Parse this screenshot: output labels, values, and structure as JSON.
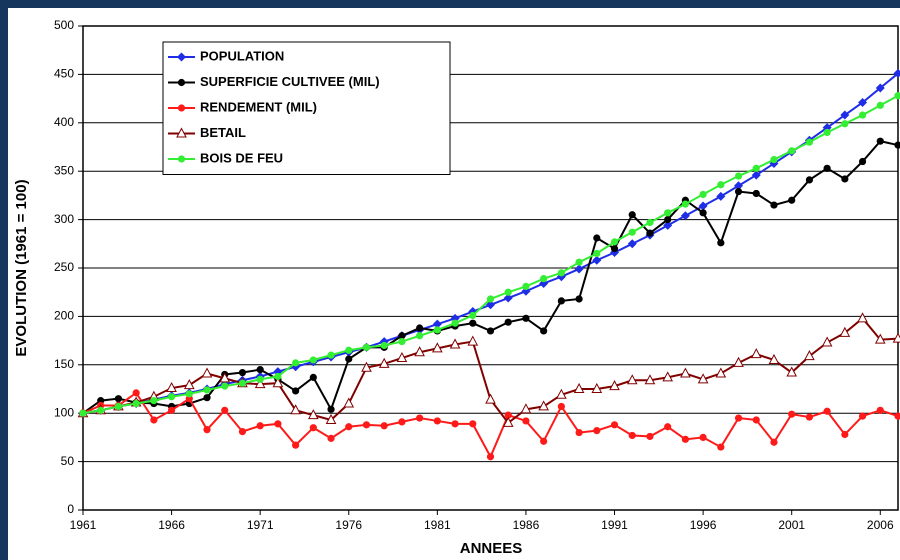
{
  "chart_data": {
    "type": "line",
    "x_label": "ANNEES",
    "y_label": "EVOLUTION (1961 = 100)",
    "x": [
      1961,
      1962,
      1963,
      1964,
      1965,
      1966,
      1967,
      1968,
      1969,
      1970,
      1971,
      1972,
      1973,
      1974,
      1975,
      1976,
      1977,
      1978,
      1979,
      1980,
      1981,
      1982,
      1983,
      1984,
      1985,
      1986,
      1987,
      1988,
      1989,
      1990,
      1991,
      1992,
      1993,
      1994,
      1995,
      1996,
      1997,
      1998,
      1999,
      2000,
      2001,
      2002,
      2003,
      2004,
      2005,
      2006,
      2007
    ],
    "xlim": [
      1961,
      2007
    ],
    "xticks": [
      1961,
      1966,
      1971,
      1976,
      1981,
      1986,
      1991,
      1996,
      2001,
      2006
    ],
    "ylim": [
      0,
      500
    ],
    "yticks": [
      0,
      50,
      100,
      150,
      200,
      250,
      300,
      350,
      400,
      450,
      500
    ],
    "grid": true,
    "legend": "upper left",
    "series": [
      {
        "name": "POPULATION",
        "color": "#1f2ee6",
        "marker": "diamond",
        "values": [
          100,
          103,
          107,
          110,
          114,
          118,
          121,
          125,
          130,
          134,
          138,
          143,
          148,
          153,
          158,
          163,
          168,
          174,
          180,
          186,
          192,
          198,
          205,
          212,
          219,
          226,
          234,
          241,
          249,
          258,
          266,
          275,
          284,
          294,
          304,
          314,
          324,
          335,
          346,
          358,
          370,
          382,
          395,
          408,
          421,
          436,
          451
        ]
      },
      {
        "name": "SUPERFICIE CULTIVEE (MIL)",
        "color": "#000000",
        "marker": "circle",
        "values": [
          100,
          113,
          115,
          111,
          110,
          107,
          110,
          116,
          140,
          142,
          145,
          135,
          123,
          137,
          104,
          156,
          168,
          168,
          180,
          188,
          185,
          190,
          193,
          185,
          194,
          198,
          185,
          216,
          218,
          281,
          270,
          305,
          286,
          300,
          320,
          307,
          276,
          329,
          327,
          315,
          320,
          341,
          353,
          342,
          360,
          381,
          377
        ]
      },
      {
        "name": "RENDEMENT (MIL)",
        "color": "#ff1a1a",
        "marker": "circle",
        "values": [
          100,
          108,
          108,
          121,
          93,
          103,
          115,
          83,
          103,
          81,
          87,
          89,
          67,
          85,
          74,
          86,
          88,
          87,
          91,
          95,
          92,
          89,
          89,
          55,
          98,
          92,
          71,
          107,
          80,
          82,
          88,
          77,
          76,
          86,
          73,
          75,
          65,
          95,
          93,
          70,
          99,
          96,
          102,
          78,
          97,
          103,
          97
        ]
      },
      {
        "name": "BETAIL",
        "color": "#800000",
        "marker": "triangle",
        "values": [
          100,
          103,
          107,
          111,
          117,
          126,
          129,
          141,
          136,
          131,
          130,
          131,
          103,
          98,
          93,
          110,
          147,
          151,
          157,
          163,
          167,
          171,
          174,
          114,
          90,
          104,
          107,
          119,
          125,
          125,
          128,
          134,
          134,
          137,
          141,
          135,
          141,
          152,
          161,
          155,
          142,
          159,
          173,
          183,
          198,
          176,
          177
        ]
      },
      {
        "name": "BOIS DE FEU",
        "color": "#33ee33",
        "marker": "circle",
        "values": [
          100,
          103,
          107,
          110,
          113,
          117,
          120,
          124,
          128,
          131,
          135,
          138,
          152,
          155,
          160,
          165,
          168,
          170,
          174,
          180,
          186,
          193,
          201,
          218,
          225,
          231,
          239,
          245,
          256,
          265,
          277,
          287,
          297,
          307,
          316,
          326,
          336,
          345,
          353,
          362,
          371,
          380,
          390,
          399,
          408,
          418,
          428
        ]
      }
    ]
  }
}
